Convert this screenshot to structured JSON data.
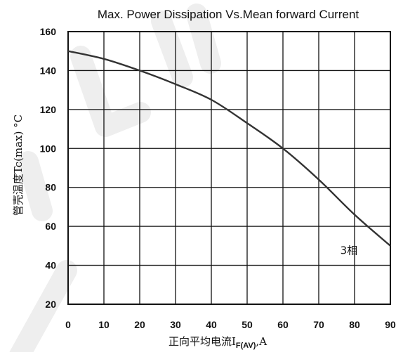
{
  "chart_data": {
    "type": "line",
    "title": "Max. Power Dissipation Vs.Mean forward Current",
    "xlabel_main": "正向平均电流I",
    "xlabel_sub": "F(AV)",
    "xlabel_tail": ",A",
    "ylabel": "管壳温度Tc(max) °C",
    "xlim": [
      0,
      90
    ],
    "ylim": [
      20,
      160
    ],
    "xticks": [
      "0",
      "10",
      "20",
      "30",
      "40",
      "50",
      "60",
      "70",
      "80",
      "90"
    ],
    "yticks": [
      "20",
      "40",
      "60",
      "80",
      "100",
      "120",
      "140",
      "160"
    ],
    "grid": true,
    "series": [
      {
        "name": "3相",
        "x": [
          0,
          10,
          20,
          30,
          40,
          50,
          60,
          70,
          80,
          90
        ],
        "y": [
          150,
          146,
          140,
          133,
          125,
          113,
          100,
          84,
          66,
          50
        ]
      }
    ],
    "annotation": {
      "text": "3相",
      "x": 76,
      "y": 48
    }
  }
}
